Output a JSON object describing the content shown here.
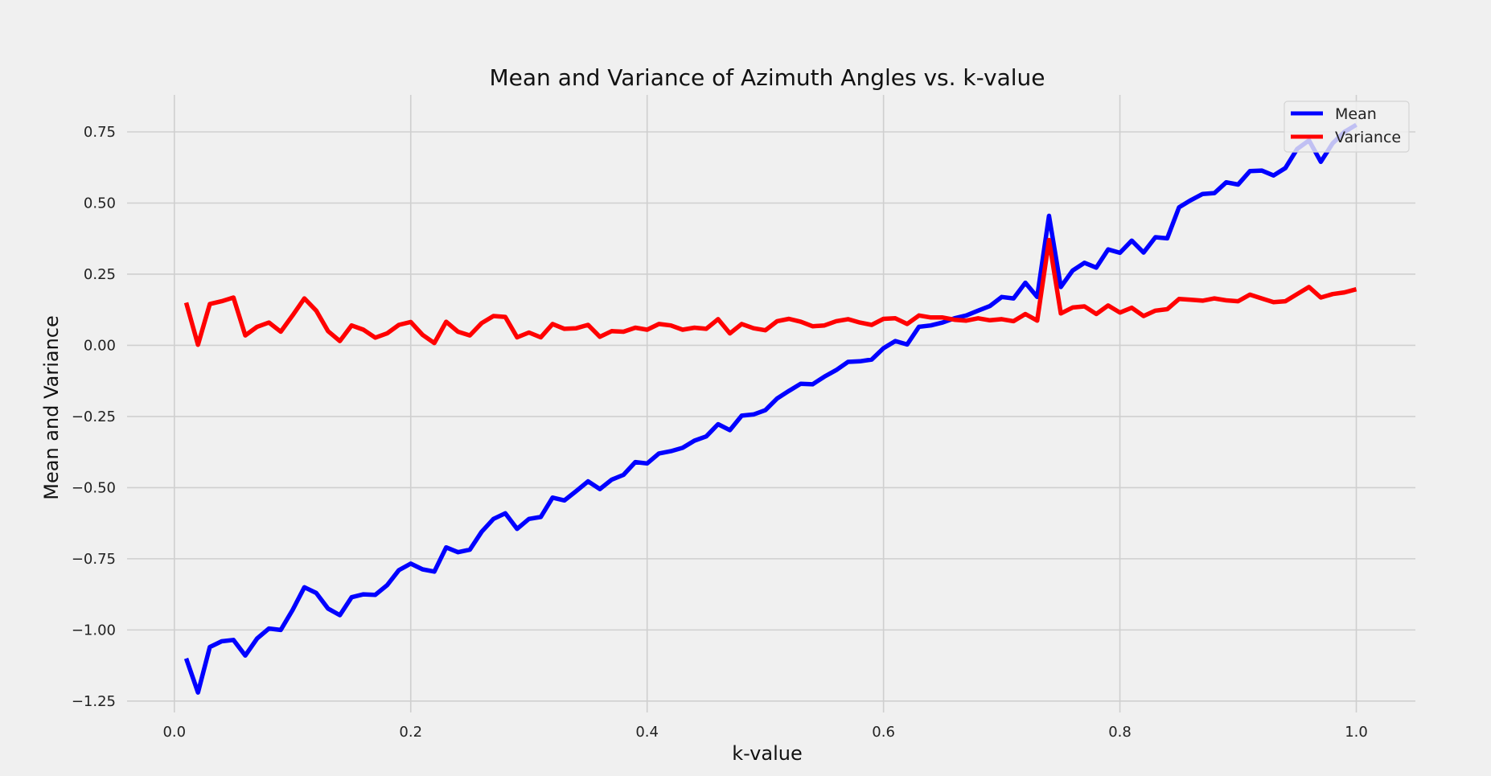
{
  "chart_data": {
    "type": "line",
    "title": "Mean and Variance of Azimuth Angles vs. k-value",
    "xlabel": "k-value",
    "ylabel": "Mean and Variance",
    "xlim": [
      -0.04,
      1.05
    ],
    "ylim": [
      -1.29,
      0.88
    ],
    "xticks": [
      0.0,
      0.2,
      0.4,
      0.6,
      0.8,
      1.0
    ],
    "xtick_labels": [
      "0.0",
      "0.2",
      "0.4",
      "0.6",
      "0.8",
      "1.0"
    ],
    "yticks": [
      0.75,
      0.5,
      0.25,
      0.0,
      -0.25,
      -0.5,
      -0.75,
      -1.0,
      -1.25
    ],
    "ytick_labels": [
      "0.75",
      "0.50",
      "0.25",
      "0.00",
      "−0.25",
      "−0.50",
      "−0.75",
      "−1.00",
      "−1.25"
    ],
    "grid": true,
    "legend_position": "top-right",
    "x": [
      0.01,
      0.02,
      0.03,
      0.04,
      0.05,
      0.06,
      0.07,
      0.08,
      0.09,
      0.1,
      0.11,
      0.12,
      0.13,
      0.14,
      0.15,
      0.16,
      0.17,
      0.18,
      0.19,
      0.2,
      0.21,
      0.22,
      0.23,
      0.24,
      0.25,
      0.26,
      0.27,
      0.28,
      0.29,
      0.3,
      0.31,
      0.32,
      0.33,
      0.34,
      0.35,
      0.36,
      0.37,
      0.38,
      0.39,
      0.4,
      0.41,
      0.42,
      0.43,
      0.44,
      0.45,
      0.46,
      0.47,
      0.48,
      0.49,
      0.5,
      0.51,
      0.52,
      0.53,
      0.54,
      0.55,
      0.56,
      0.57,
      0.58,
      0.59,
      0.6,
      0.61,
      0.62,
      0.63,
      0.64,
      0.65,
      0.66,
      0.67,
      0.68,
      0.69,
      0.7,
      0.71,
      0.72,
      0.73,
      0.74,
      0.75,
      0.76,
      0.77,
      0.78,
      0.79,
      0.8,
      0.81,
      0.82,
      0.83,
      0.84,
      0.85,
      0.86,
      0.87,
      0.88,
      0.89,
      0.9,
      0.91,
      0.92,
      0.93,
      0.94,
      0.95,
      0.96,
      0.97,
      0.98,
      0.99,
      1.0
    ],
    "series": [
      {
        "name": "Mean",
        "color": "#0000ff",
        "values": [
          -1.1,
          -1.22,
          -1.06,
          -1.04,
          -1.035,
          -1.09,
          -1.03,
          -0.995,
          -1.0,
          -0.93,
          -0.85,
          -0.87,
          -0.925,
          -0.948,
          -0.885,
          -0.875,
          -0.877,
          -0.843,
          -0.79,
          -0.767,
          -0.787,
          -0.795,
          -0.71,
          -0.727,
          -0.718,
          -0.655,
          -0.61,
          -0.59,
          -0.645,
          -0.61,
          -0.603,
          -0.535,
          -0.545,
          -0.512,
          -0.478,
          -0.505,
          -0.472,
          -0.455,
          -0.41,
          -0.415,
          -0.38,
          -0.372,
          -0.36,
          -0.335,
          -0.32,
          -0.277,
          -0.298,
          -0.247,
          -0.243,
          -0.228,
          -0.187,
          -0.16,
          -0.135,
          -0.137,
          -0.11,
          -0.087,
          -0.058,
          -0.056,
          -0.05,
          -0.01,
          0.015,
          0.003,
          0.065,
          0.07,
          0.08,
          0.095,
          0.105,
          0.122,
          0.138,
          0.17,
          0.165,
          0.22,
          0.17,
          0.455,
          0.205,
          0.263,
          0.29,
          0.273,
          0.337,
          0.325,
          0.368,
          0.326,
          0.38,
          0.376,
          0.485,
          0.51,
          0.532,
          0.535,
          0.573,
          0.565,
          0.612,
          0.614,
          0.597,
          0.623,
          0.69,
          0.72,
          0.645,
          0.71,
          0.75,
          0.775
        ]
      },
      {
        "name": "Variance",
        "color": "#ff0000",
        "values": [
          0.15,
          0.002,
          0.145,
          0.155,
          0.168,
          0.035,
          0.065,
          0.08,
          0.048,
          0.105,
          0.165,
          0.122,
          0.05,
          0.015,
          0.07,
          0.055,
          0.027,
          0.042,
          0.072,
          0.082,
          0.037,
          0.008,
          0.083,
          0.048,
          0.035,
          0.078,
          0.103,
          0.1,
          0.028,
          0.045,
          0.028,
          0.075,
          0.058,
          0.06,
          0.072,
          0.03,
          0.05,
          0.048,
          0.062,
          0.055,
          0.075,
          0.07,
          0.055,
          0.062,
          0.058,
          0.092,
          0.042,
          0.075,
          0.06,
          0.053,
          0.085,
          0.093,
          0.083,
          0.067,
          0.07,
          0.085,
          0.092,
          0.08,
          0.072,
          0.093,
          0.095,
          0.075,
          0.105,
          0.098,
          0.098,
          0.09,
          0.087,
          0.095,
          0.088,
          0.092,
          0.085,
          0.11,
          0.087,
          0.37,
          0.112,
          0.133,
          0.137,
          0.11,
          0.14,
          0.115,
          0.132,
          0.103,
          0.122,
          0.127,
          0.163,
          0.16,
          0.157,
          0.165,
          0.158,
          0.155,
          0.178,
          0.165,
          0.152,
          0.155,
          0.18,
          0.205,
          0.168,
          0.18,
          0.186,
          0.197
        ]
      }
    ]
  }
}
